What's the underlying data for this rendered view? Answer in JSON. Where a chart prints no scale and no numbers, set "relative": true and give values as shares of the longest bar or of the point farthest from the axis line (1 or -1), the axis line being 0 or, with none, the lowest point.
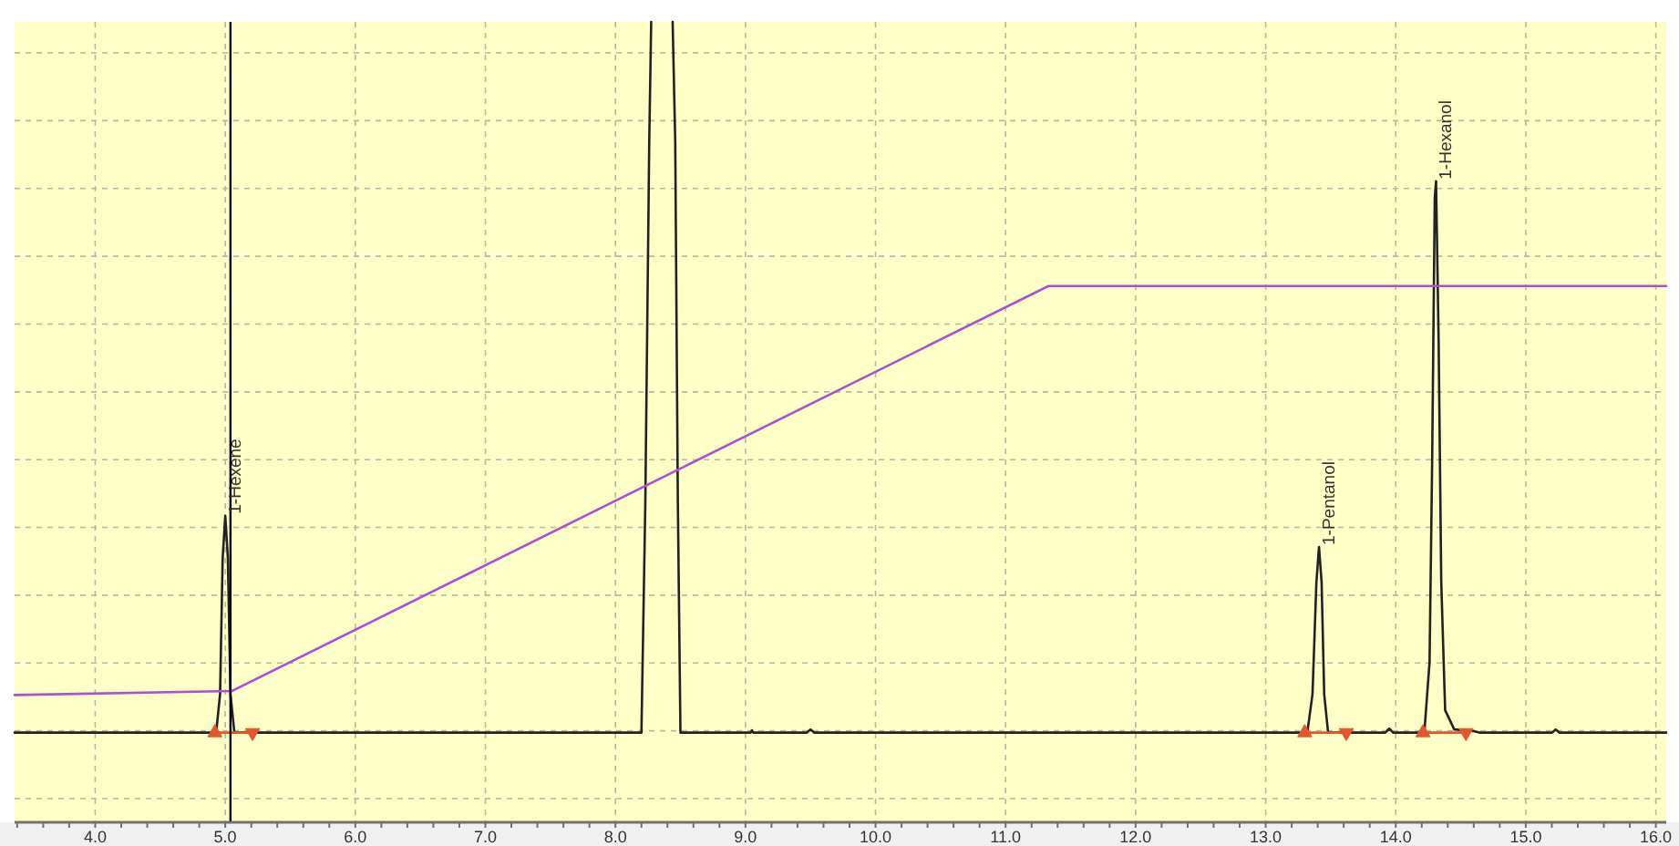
{
  "chart_data": {
    "type": "line",
    "relative": true,
    "xlim": [
      3.38,
      16.08
    ],
    "xticks": [
      {
        "value": 3.4,
        "label": null
      },
      {
        "value": 3.6,
        "label": null
      },
      {
        "value": 3.8,
        "label": null
      },
      {
        "value": 4,
        "label": "4.0"
      },
      {
        "value": 4.2,
        "label": null
      },
      {
        "value": 4.4,
        "label": null
      },
      {
        "value": 4.6,
        "label": null
      },
      {
        "value": 4.8,
        "label": null
      },
      {
        "value": 5,
        "label": "5.0"
      },
      {
        "value": 5.2,
        "label": null
      },
      {
        "value": 5.4,
        "label": null
      },
      {
        "value": 5.6,
        "label": null
      },
      {
        "value": 5.8,
        "label": null
      },
      {
        "value": 6,
        "label": "6.0"
      },
      {
        "value": 6.2,
        "label": null
      },
      {
        "value": 6.4,
        "label": null
      },
      {
        "value": 6.6,
        "label": null
      },
      {
        "value": 6.8,
        "label": null
      },
      {
        "value": 7,
        "label": "7.0"
      },
      {
        "value": 7.2,
        "label": null
      },
      {
        "value": 7.4,
        "label": null
      },
      {
        "value": 7.6,
        "label": null
      },
      {
        "value": 7.8,
        "label": null
      },
      {
        "value": 8,
        "label": "8.0"
      },
      {
        "value": 8.2,
        "label": null
      },
      {
        "value": 8.4,
        "label": null
      },
      {
        "value": 8.6,
        "label": null
      },
      {
        "value": 8.8,
        "label": null
      },
      {
        "value": 9,
        "label": "9.0"
      },
      {
        "value": 9.2,
        "label": null
      },
      {
        "value": 9.4,
        "label": null
      },
      {
        "value": 9.6,
        "label": null
      },
      {
        "value": 9.8,
        "label": null
      },
      {
        "value": 10,
        "label": "10.0"
      },
      {
        "value": 10.2,
        "label": null
      },
      {
        "value": 10.4,
        "label": null
      },
      {
        "value": 10.6,
        "label": null
      },
      {
        "value": 10.8,
        "label": null
      },
      {
        "value": 11,
        "label": "11.0"
      },
      {
        "value": 11.2,
        "label": null
      },
      {
        "value": 11.4,
        "label": null
      },
      {
        "value": 11.6,
        "label": null
      },
      {
        "value": 11.8,
        "label": null
      },
      {
        "value": 12,
        "label": "12.0"
      },
      {
        "value": 12.2,
        "label": null
      },
      {
        "value": 12.4,
        "label": null
      },
      {
        "value": 12.6,
        "label": null
      },
      {
        "value": 12.8,
        "label": null
      },
      {
        "value": 13,
        "label": "13.0"
      },
      {
        "value": 13.2,
        "label": null
      },
      {
        "value": 13.4,
        "label": null
      },
      {
        "value": 13.6,
        "label": null
      },
      {
        "value": 13.8,
        "label": null
      },
      {
        "value": 14,
        "label": "14.0"
      },
      {
        "value": 14.2,
        "label": null
      },
      {
        "value": 14.4,
        "label": null
      },
      {
        "value": 14.6,
        "label": null
      },
      {
        "value": 14.8,
        "label": null
      },
      {
        "value": 15,
        "label": "15.0"
      },
      {
        "value": 15.2,
        "label": null
      },
      {
        "value": 15.4,
        "label": null
      },
      {
        "value": 15.6,
        "label": null
      },
      {
        "value": 15.8,
        "label": null
      },
      {
        "value": 16,
        "label": "16.0"
      }
    ],
    "grid": true,
    "series": [
      {
        "color": "#222222",
        "x": [
          3.38,
          4.93,
          4.96,
          4.98,
          5.0,
          5.02,
          5.04,
          5.07,
          8.2,
          8.23,
          8.26,
          8.275,
          8.36,
          8.44,
          8.46,
          8.48,
          8.5,
          9.04,
          9.05,
          9.06,
          9.47,
          9.5,
          9.53,
          13.32,
          13.36,
          13.39,
          13.41,
          13.43,
          13.45,
          13.48,
          13.92,
          13.95,
          13.98,
          14.22,
          14.26,
          14.28,
          14.3,
          14.31,
          14.33,
          14.35,
          14.38,
          14.45,
          14.6,
          14.65,
          15.2,
          15.23,
          15.26,
          16.08
        ],
        "values": [
          0.112,
          0.112,
          0.16,
          0.33,
          0.383,
          0.33,
          0.16,
          0.112,
          0.112,
          0.4,
          0.85,
          1,
          null,
          1,
          0.85,
          0.4,
          0.112,
          0.112,
          0.115,
          0.112,
          0.112,
          0.116,
          0.112,
          0.112,
          0.16,
          0.3,
          0.344,
          0.3,
          0.16,
          0.112,
          0.112,
          0.117,
          0.112,
          0.112,
          0.2,
          0.45,
          0.78,
          0.801,
          0.6,
          0.3,
          0.14,
          0.116,
          0.114,
          0.112,
          0.112,
          0.116,
          0.112,
          0.112
        ]
      },
      {
        "color": "#b04fd0",
        "x": [
          3.38,
          5.05,
          11.33,
          16.08
        ],
        "values": [
          0.159,
          0.164,
          0.67,
          0.67
        ]
      },
      {
        "color": "#e0582c",
        "marker": "triangle",
        "x": [
          4.92,
          5.21
        ],
        "values": [
          0.112,
          0.112
        ]
      },
      {
        "color": "#e0582c",
        "marker": "triangle",
        "x": [
          13.3,
          13.62
        ],
        "values": [
          0.112,
          0.112
        ]
      },
      {
        "color": "#e0582c",
        "marker": "triangle",
        "x": [
          14.21,
          14.54
        ],
        "values": [
          0.112,
          0.112
        ]
      }
    ],
    "ref_lines": [
      {
        "axis": "x",
        "value": 5.04,
        "color": "#000000"
      }
    ],
    "annotations": [
      {
        "text": "1-Hexene",
        "x": 5.0,
        "y": 0.383
      },
      {
        "text": "1-Pentanol",
        "x": 13.41,
        "y": 0.344
      },
      {
        "text": "1-Hexanol",
        "x": 14.31,
        "y": 0.801
      }
    ]
  }
}
